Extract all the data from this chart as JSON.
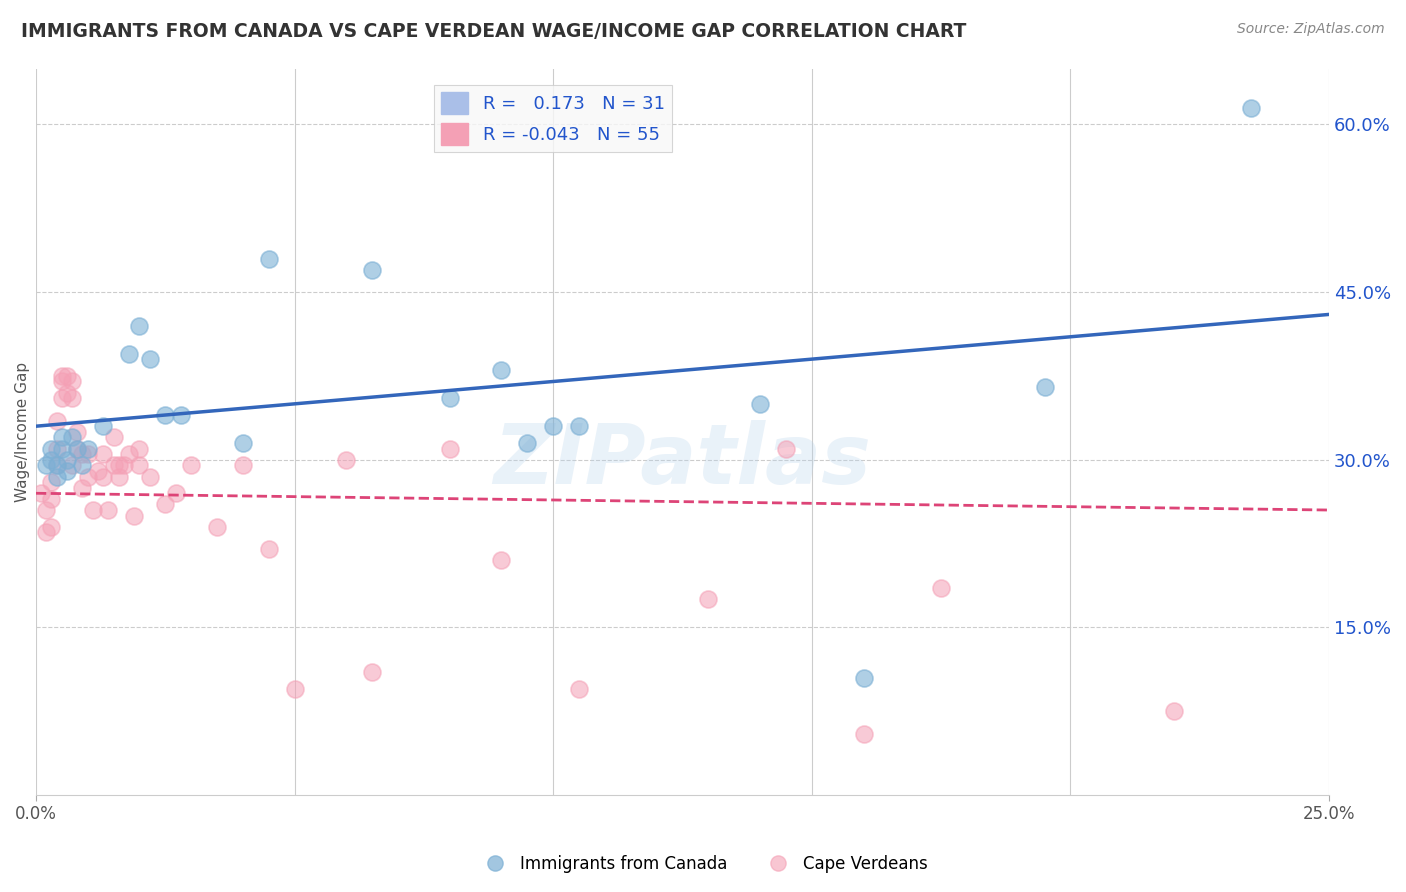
{
  "title": "IMMIGRANTS FROM CANADA VS CAPE VERDEAN WAGE/INCOME GAP CORRELATION CHART",
  "source": "Source: ZipAtlas.com",
  "ylabel": "Wage/Income Gap",
  "xlim": [
    0.0,
    0.25
  ],
  "ylim": [
    0.0,
    0.65
  ],
  "yticks": [
    0.15,
    0.3,
    0.45,
    0.6
  ],
  "ytick_labels": [
    "15.0%",
    "30.0%",
    "45.0%",
    "60.0%"
  ],
  "xtick_positions": [
    0.0,
    0.25
  ],
  "xtick_labels": [
    "0.0%",
    "25.0%"
  ],
  "r_canada": 0.173,
  "n_canada": 31,
  "r_capeverde": -0.043,
  "n_capeverde": 55,
  "blue_color": "#7BAFD4",
  "pink_color": "#F4A0B5",
  "blue_line_color": "#3366BB",
  "pink_line_color": "#DD4477",
  "watermark": "ZIPatlas",
  "legend_label_canada": "Immigrants from Canada",
  "legend_label_capeverde": "Cape Verdeans",
  "blue_trend_x": [
    0.0,
    0.25
  ],
  "blue_trend_y": [
    0.33,
    0.43
  ],
  "pink_trend_x": [
    0.0,
    0.25
  ],
  "pink_trend_y": [
    0.27,
    0.255
  ],
  "canada_x": [
    0.002,
    0.003,
    0.003,
    0.004,
    0.004,
    0.005,
    0.005,
    0.006,
    0.006,
    0.007,
    0.008,
    0.009,
    0.01,
    0.013,
    0.018,
    0.02,
    0.022,
    0.025,
    0.028,
    0.04,
    0.045,
    0.065,
    0.08,
    0.09,
    0.095,
    0.1,
    0.105,
    0.14,
    0.16,
    0.195,
    0.235
  ],
  "canada_y": [
    0.295,
    0.3,
    0.31,
    0.285,
    0.295,
    0.31,
    0.32,
    0.3,
    0.29,
    0.32,
    0.31,
    0.295,
    0.31,
    0.33,
    0.395,
    0.42,
    0.39,
    0.34,
    0.34,
    0.315,
    0.48,
    0.47,
    0.355,
    0.38,
    0.315,
    0.33,
    0.33,
    0.35,
    0.105,
    0.365,
    0.615
  ],
  "capeverde_x": [
    0.001,
    0.002,
    0.002,
    0.003,
    0.003,
    0.003,
    0.004,
    0.004,
    0.004,
    0.005,
    0.005,
    0.005,
    0.006,
    0.006,
    0.007,
    0.007,
    0.007,
    0.008,
    0.008,
    0.009,
    0.009,
    0.01,
    0.01,
    0.011,
    0.012,
    0.013,
    0.013,
    0.014,
    0.015,
    0.015,
    0.016,
    0.016,
    0.017,
    0.018,
    0.019,
    0.02,
    0.02,
    0.022,
    0.025,
    0.027,
    0.03,
    0.035,
    0.04,
    0.045,
    0.05,
    0.06,
    0.065,
    0.08,
    0.09,
    0.105,
    0.13,
    0.145,
    0.16,
    0.175,
    0.22
  ],
  "capeverde_y": [
    0.27,
    0.235,
    0.255,
    0.24,
    0.28,
    0.265,
    0.295,
    0.31,
    0.335,
    0.37,
    0.355,
    0.375,
    0.36,
    0.375,
    0.295,
    0.355,
    0.37,
    0.31,
    0.325,
    0.275,
    0.305,
    0.285,
    0.305,
    0.255,
    0.29,
    0.285,
    0.305,
    0.255,
    0.295,
    0.32,
    0.285,
    0.295,
    0.295,
    0.305,
    0.25,
    0.295,
    0.31,
    0.285,
    0.26,
    0.27,
    0.295,
    0.24,
    0.295,
    0.22,
    0.095,
    0.3,
    0.11,
    0.31,
    0.21,
    0.095,
    0.175,
    0.31,
    0.055,
    0.185,
    0.075
  ],
  "background_color": "#ffffff",
  "grid_color": "#cccccc"
}
